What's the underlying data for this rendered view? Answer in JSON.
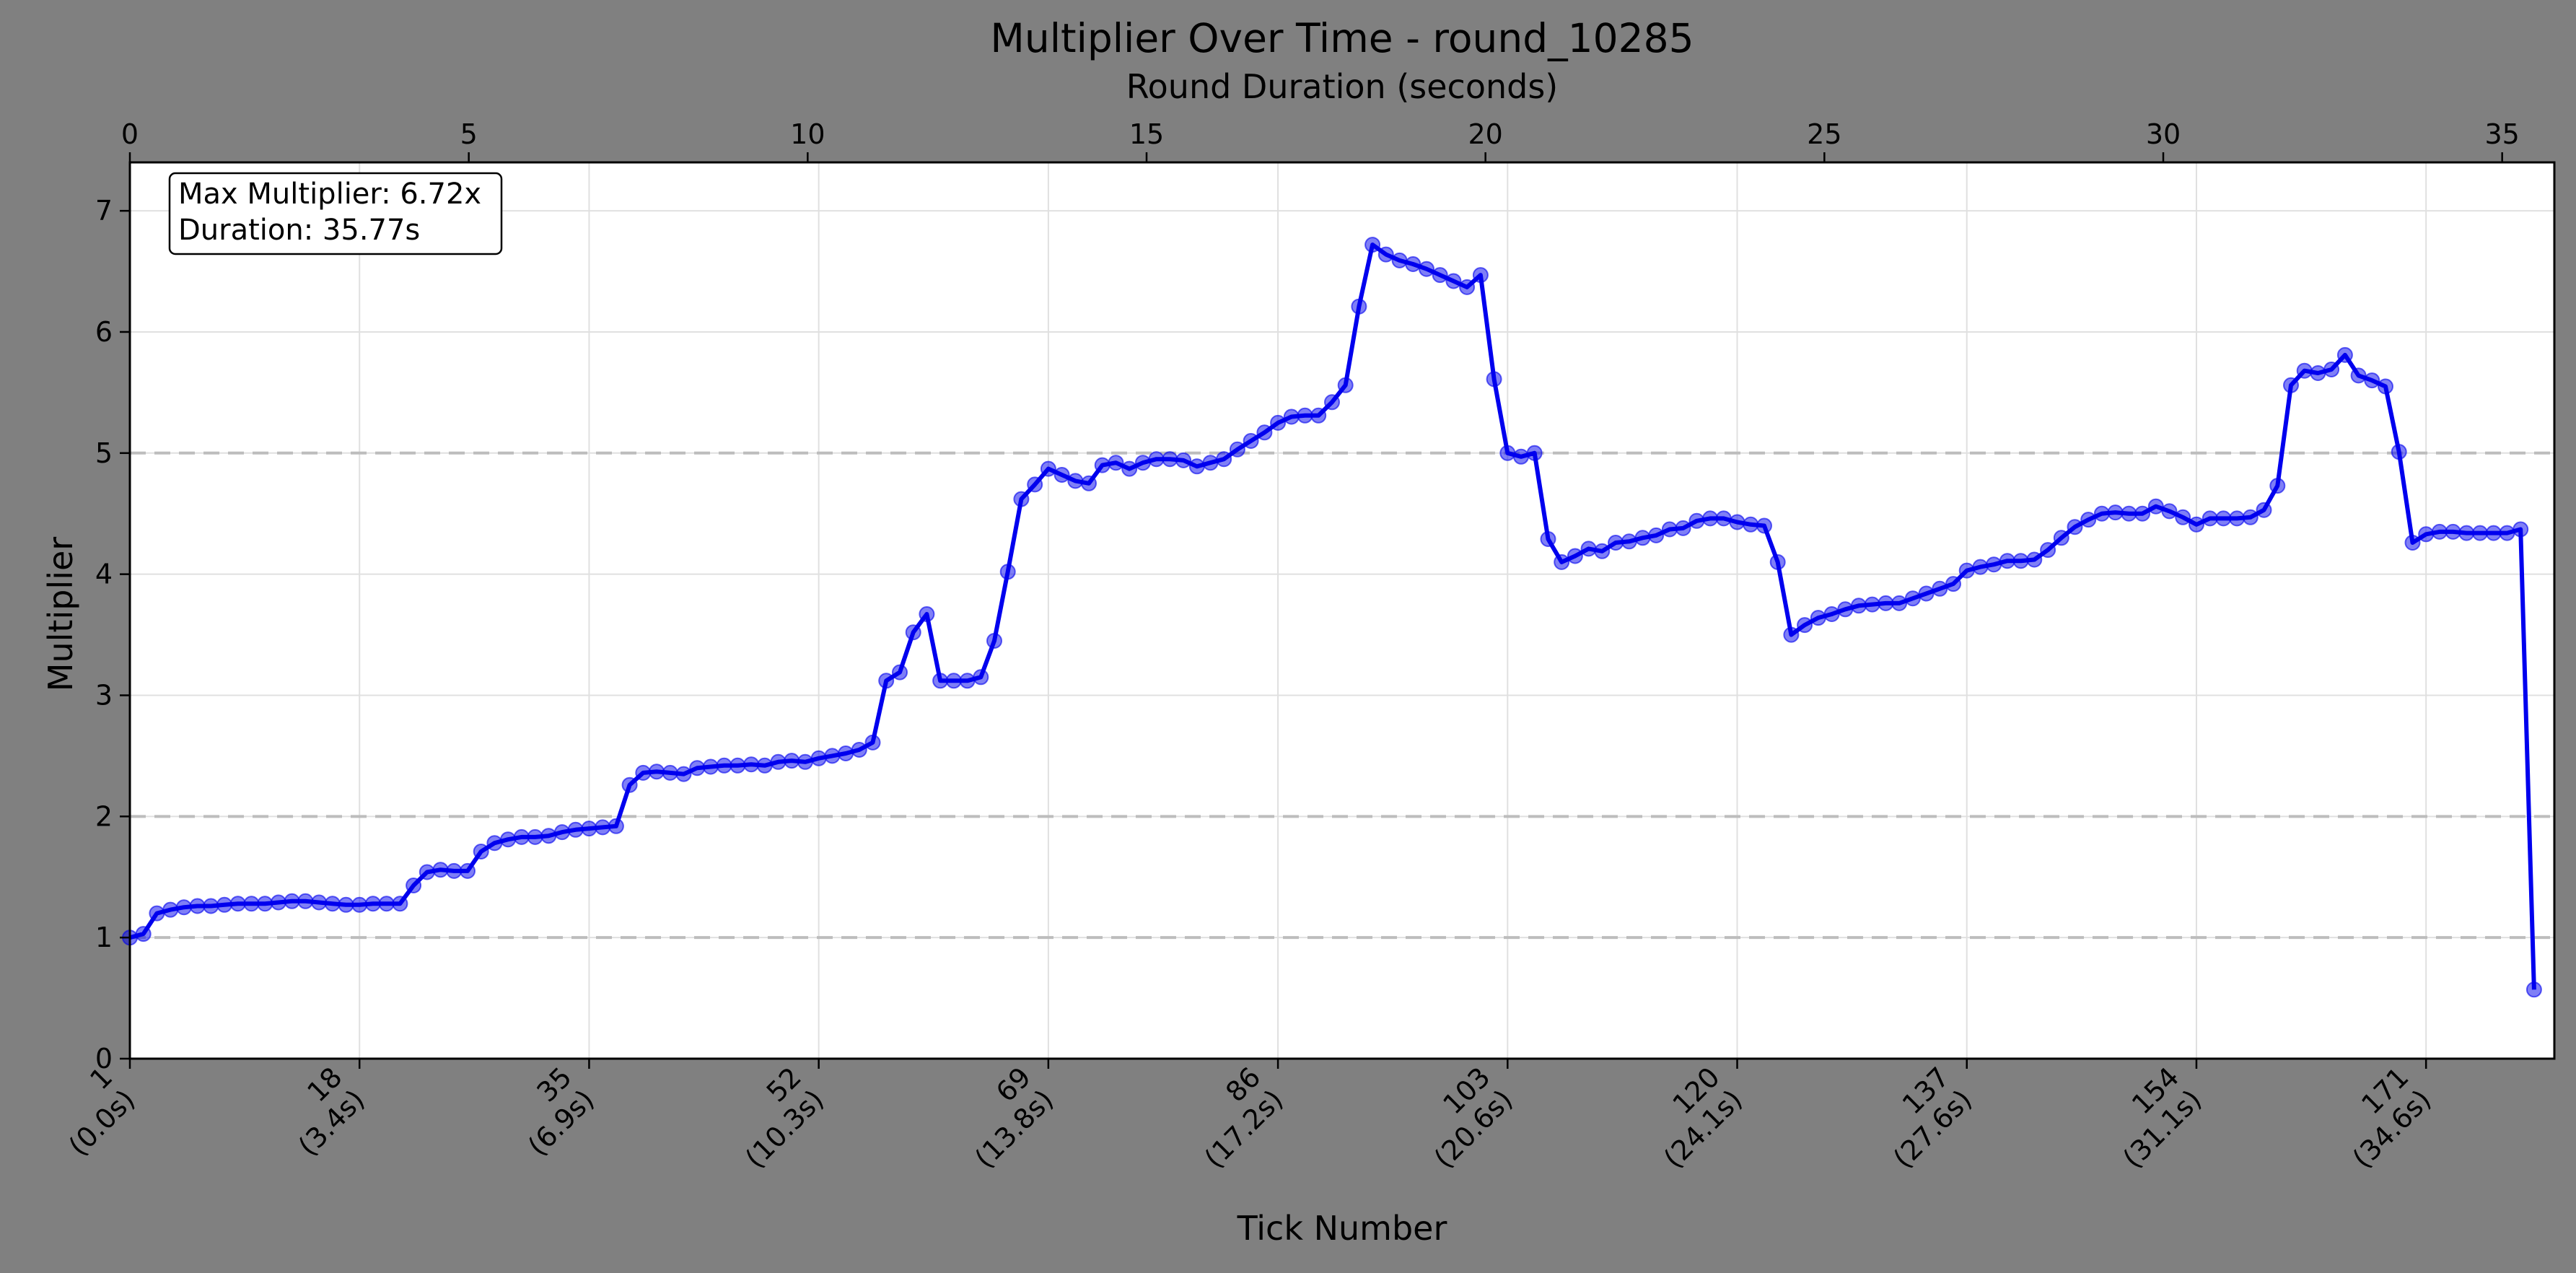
{
  "chart_data": {
    "type": "line",
    "title": "Multiplier Over Time - round_10285",
    "xlabel": "Tick Number",
    "ylabel": "Multiplier",
    "secondary_xlabel": "Round Duration (seconds)",
    "xlim": [
      1,
      180.5
    ],
    "ylim": [
      0,
      7.4
    ],
    "y_ticks": [
      "0",
      "1",
      "2",
      "3",
      "4",
      "5",
      "6",
      "7"
    ],
    "secondary_x_ticks": [
      "0",
      "5",
      "10",
      "15",
      "20",
      "25",
      "30",
      "35"
    ],
    "secondary_xlim_seconds": [
      0,
      35.77
    ],
    "x_tick_labels": [
      {
        "tick": 1,
        "label": "1",
        "sub": "(0.0s)"
      },
      {
        "tick": 18,
        "label": "18",
        "sub": "(3.4s)"
      },
      {
        "tick": 35,
        "label": "35",
        "sub": "(6.9s)"
      },
      {
        "tick": 52,
        "label": "52",
        "sub": "(10.3s)"
      },
      {
        "tick": 69,
        "label": "69",
        "sub": "(13.8s)"
      },
      {
        "tick": 86,
        "label": "86",
        "sub": "(17.2s)"
      },
      {
        "tick": 103,
        "label": "103",
        "sub": "(20.6s)"
      },
      {
        "tick": 120,
        "label": "120",
        "sub": "(24.1s)"
      },
      {
        "tick": 137,
        "label": "137",
        "sub": "(27.6s)"
      },
      {
        "tick": 154,
        "label": "154",
        "sub": "(31.1s)"
      },
      {
        "tick": 171,
        "label": "171",
        "sub": "(34.6s)"
      }
    ],
    "reference_lines": [
      1,
      2,
      5
    ],
    "grid": true,
    "annotation": {
      "line1": "Max Multiplier: 6.72x",
      "line2": "Duration: 35.77s"
    },
    "series": [
      {
        "color": "#0000ee",
        "values": [
          1.0,
          1.03,
          1.2,
          1.23,
          1.25,
          1.26,
          1.26,
          1.27,
          1.28,
          1.28,
          1.28,
          1.29,
          1.3,
          1.3,
          1.29,
          1.28,
          1.27,
          1.27,
          1.28,
          1.28,
          1.28,
          1.43,
          1.54,
          1.56,
          1.55,
          1.55,
          1.71,
          1.78,
          1.81,
          1.83,
          1.83,
          1.84,
          1.87,
          1.89,
          1.9,
          1.91,
          1.92,
          2.26,
          2.36,
          2.37,
          2.36,
          2.35,
          2.4,
          2.41,
          2.42,
          2.42,
          2.43,
          2.42,
          2.45,
          2.46,
          2.45,
          2.48,
          2.5,
          2.52,
          2.55,
          2.61,
          3.12,
          3.19,
          3.52,
          3.67,
          3.12,
          3.12,
          3.12,
          3.15,
          3.45,
          4.02,
          4.62,
          4.74,
          4.87,
          4.82,
          4.77,
          4.75,
          4.9,
          4.92,
          4.87,
          4.92,
          4.95,
          4.95,
          4.94,
          4.89,
          4.92,
          4.95,
          5.03,
          5.1,
          5.17,
          5.25,
          5.3,
          5.31,
          5.31,
          5.42,
          5.56,
          6.21,
          6.72,
          6.64,
          6.59,
          6.56,
          6.52,
          6.47,
          6.42,
          6.37,
          6.47,
          5.61,
          5.0,
          4.97,
          5.0,
          4.29,
          4.1,
          4.15,
          4.21,
          4.19,
          4.26,
          4.27,
          4.3,
          4.32,
          4.37,
          4.38,
          4.44,
          4.46,
          4.46,
          4.43,
          4.41,
          4.4,
          4.1,
          3.5,
          3.58,
          3.64,
          3.67,
          3.71,
          3.74,
          3.75,
          3.76,
          3.76,
          3.8,
          3.84,
          3.88,
          3.92,
          4.03,
          4.06,
          4.08,
          4.11,
          4.11,
          4.12,
          4.2,
          4.3,
          4.39,
          4.45,
          4.5,
          4.51,
          4.5,
          4.5,
          4.56,
          4.52,
          4.47,
          4.41,
          4.46,
          4.46,
          4.46,
          4.47,
          4.53,
          4.73,
          5.56,
          5.68,
          5.66,
          5.69,
          5.81,
          5.64,
          5.6,
          5.55,
          5.01,
          4.26,
          4.33,
          4.35,
          4.35,
          4.34,
          4.34,
          4.34,
          4.34,
          4.37,
          0.57
        ]
      }
    ]
  }
}
